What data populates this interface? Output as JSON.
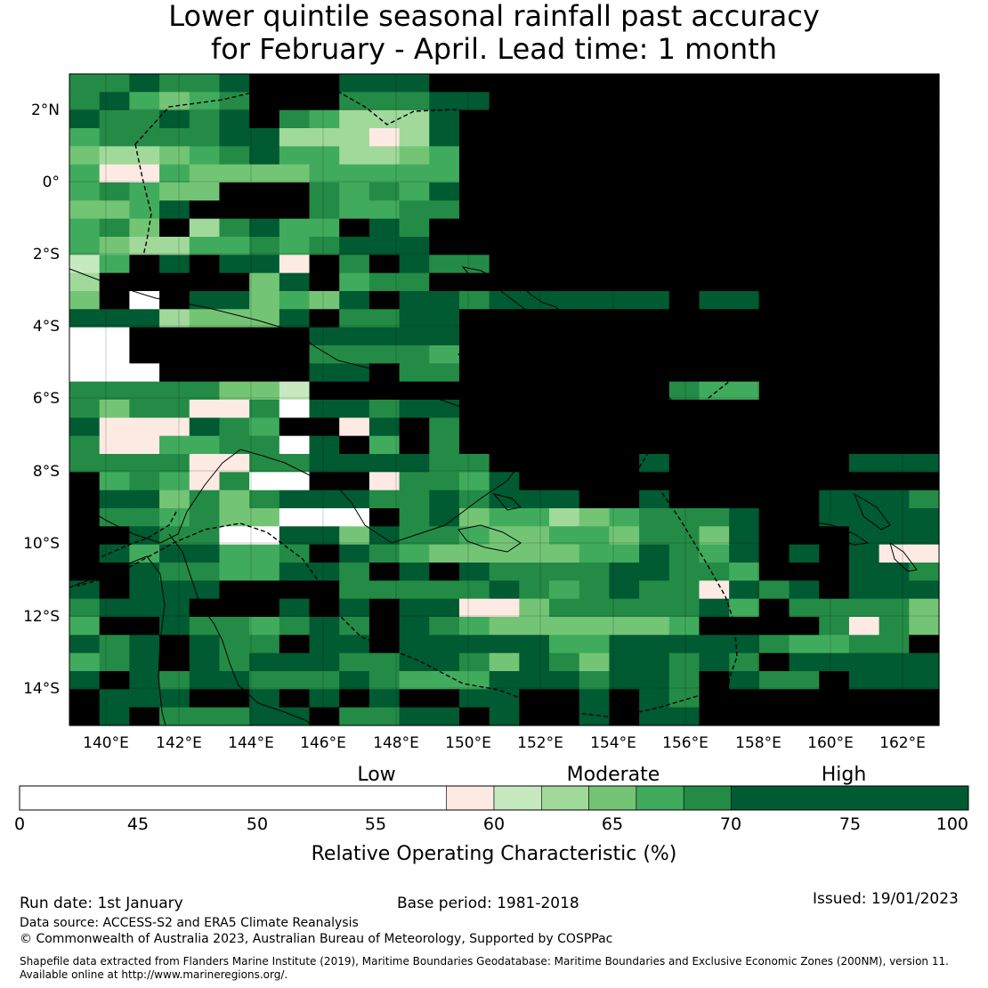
{
  "title": {
    "line1": "Lower quintile seasonal rainfall past accuracy",
    "line2": "for February - April. Lead time: 1 month"
  },
  "map": {
    "lon_ticks": [
      "140°E",
      "142°E",
      "144°E",
      "146°E",
      "148°E",
      "150°E",
      "152°E",
      "154°E",
      "156°E",
      "158°E",
      "160°E",
      "162°E"
    ],
    "lat_ticks": [
      "2°N",
      "0°",
      "2°S",
      "4°S",
      "6°S",
      "8°S",
      "10°S",
      "12°S",
      "14°S"
    ],
    "cols": 29,
    "rows": 36,
    "grid_bins": [
      "66766788877788888888888888888",
      "67545688866677888888888888888",
      "76676786533378888888888888888",
      "56666773331378888888888888888",
      "43345675533458888888888888888",
      "51154444555558888888888888888",
      "56544888656578888888888888888",
      "44578888655668888888888888888",
      "56483675587688888888888888888",
      "54335565677788888888888888888",
      "25878771868766888888888888888",
      "38888847856688888888888888888",
      "48087745478776777777877888888",
      "77734447866778888888888888888",
      "00888888777778888888888888888",
      "00888888666658888888888888888",
      "00088888778668888888888888888",
      "66666442888888888888655888888",
      "64661160776778888888888888888",
      "71117658817868888888888888888",
      "61155660785868888888888888888",
      "66661166777766888887888888777",
      "85651600881665788888888888888",
      "87746467776676777887888887776",
      "86656440008674553456667887777",
      "88766007747665445546647888777",
      "87577556876544444557657878711",
      "88766557768787666677665888776",
      "78777888866666765676617678777",
      "67778887878771146666675866664",
      "58876656768765444444588886164",
      "76787668778777775577777655668",
      "56787677766776476477676877777",
      "78767766676555777677687668777",
      "87778878787887788787688888888",
      "87866677866778788787788888888"
    ]
  },
  "colorbar": {
    "labels": [
      "Low",
      "Moderate",
      "High"
    ],
    "ticks": [
      "0",
      "45",
      "50",
      "55",
      "60",
      "65",
      "70",
      "75",
      "100"
    ],
    "colors": [
      "#ffffff",
      "#fdeae3",
      "#c7e9c0",
      "#a1d99b",
      "#74c476",
      "#41ab5d",
      "#238b45",
      "#005a32"
    ],
    "title": "Relative Operating Characteristic (%)"
  },
  "footer": {
    "run_date": "Run date: 1st January",
    "base_period": "Base period: 1981-2018",
    "issued": "Issued: 19/01/2023",
    "data_source": "Data source: ACCESS-S2 and ERA5 Climate Reanalysis",
    "copyright": "© Commonwealth of Australia 2023, Australian Bureau of Meteorology, Supported by COSPPac",
    "shapefile_1": "Shapefile data extracted from Flanders Marine Institute (2019), Maritime Boundaries Geodatabase: Maritime Boundaries and Exclusive Economic Zones (200NM), version 11.",
    "shapefile_2": "Available online at http://www.marineregions.org/."
  }
}
